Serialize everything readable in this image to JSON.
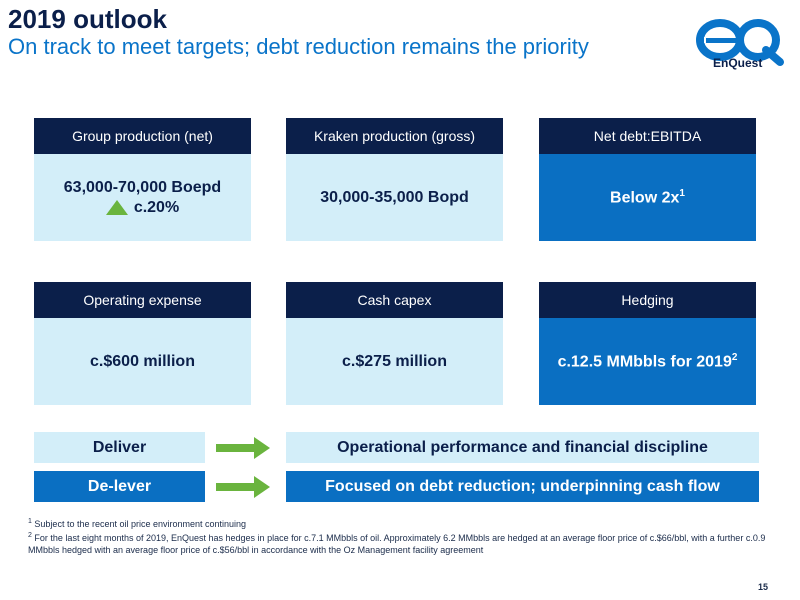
{
  "header": {
    "title": "2019 outlook",
    "subtitle": "On track to meet targets; debt reduction remains the priority"
  },
  "logo": {
    "text": "EnQuest",
    "icon": "enquest-eq-logo",
    "color": "#0a74c9"
  },
  "cards": [
    {
      "label": "Group production (net)",
      "value": "63,000-70,000 Boepd",
      "sub_value": "c.20%",
      "sub_icon": "up-triangle-icon"
    },
    {
      "label": "Kraken production (gross)",
      "value": "30,000-35,000 Bopd"
    },
    {
      "label": "Net debt:EBITDA",
      "value": "Below 2x",
      "superscript": "1"
    },
    {
      "label": "Operating expense",
      "value": "c.$600 million"
    },
    {
      "label": "Cash capex",
      "value": "c.$275 million"
    },
    {
      "label": "Hedging",
      "value": "c.12.5 MMbbls for 2019",
      "superscript": "2"
    }
  ],
  "bands": [
    {
      "left": "Deliver",
      "right": "Operational performance and financial discipline"
    },
    {
      "left": "De-lever",
      "right": "Focused on debt reduction; underpinning cash flow"
    }
  ],
  "footnotes": [
    {
      "num": "1",
      "text": "Subject to the recent oil price environment continuing"
    },
    {
      "num": "2",
      "text": "For the last eight months of 2019, EnQuest has hedges in place for c.7.1 MMbbls of oil. Approximately 6.2 MMbbls are hedged at an average floor price of c.$66/bbl, with a further c.0.9 MMbbls hedged with an average floor price of c.$56/bbl in accordance with the Oz Management facility agreement"
    }
  ],
  "page_number": "15",
  "colors": {
    "navy": "#0b1f4a",
    "blue": "#0a6fc2",
    "light_blue": "#d3eef9",
    "green": "#6ab43e"
  }
}
